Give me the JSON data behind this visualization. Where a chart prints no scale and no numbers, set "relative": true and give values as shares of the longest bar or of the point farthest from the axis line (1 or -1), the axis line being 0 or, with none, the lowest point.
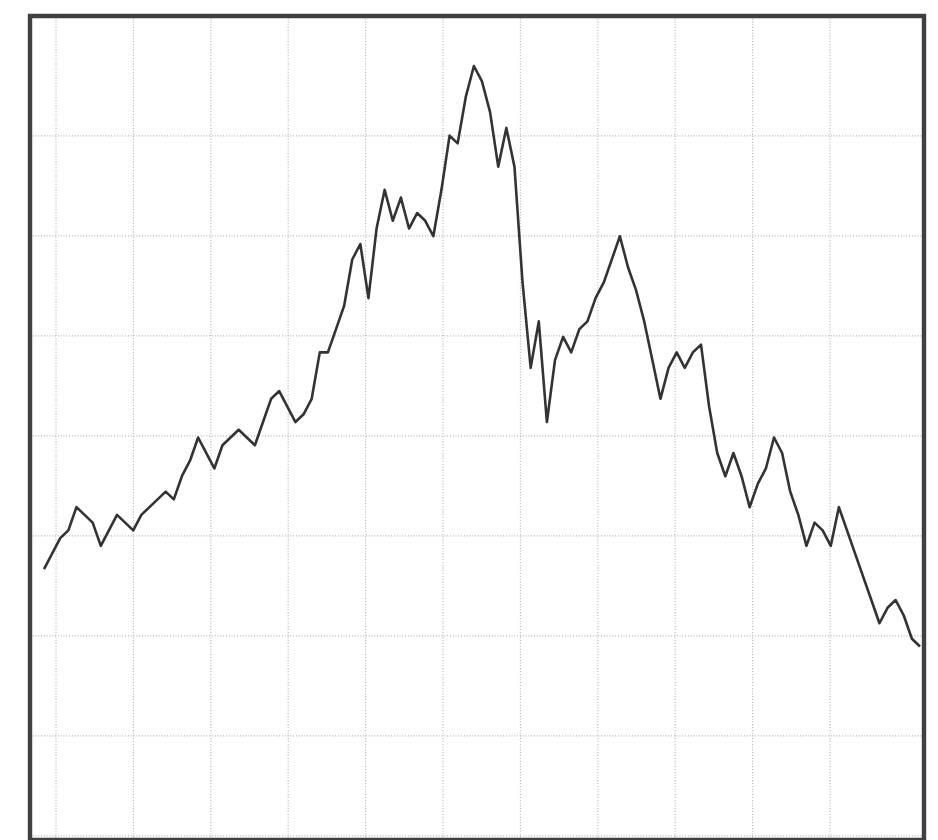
{
  "chart_data": {
    "type": "line",
    "relative": true,
    "grid": true,
    "color": "#333333",
    "categories": [
      null,
      null,
      null,
      null,
      null,
      null,
      null,
      null,
      null,
      null,
      null,
      null,
      null,
      null,
      null,
      null,
      null,
      null,
      null,
      null,
      null,
      null,
      null,
      null,
      null,
      null,
      null,
      null,
      null,
      null,
      null,
      null,
      null,
      null,
      null,
      null,
      null,
      null,
      null,
      null,
      null,
      null,
      null,
      null,
      null,
      null,
      null,
      null,
      null,
      null,
      null,
      null,
      null,
      null,
      null,
      null,
      null,
      null,
      null,
      null,
      null,
      null,
      null,
      null,
      null,
      null,
      null,
      null,
      null,
      null,
      null,
      null,
      null,
      null,
      null,
      null,
      null,
      null,
      null,
      null,
      null,
      null,
      null,
      null,
      null,
      null,
      null,
      null,
      null,
      null,
      null,
      null,
      null,
      null,
      null,
      null,
      null,
      null,
      null,
      null,
      null,
      null,
      null,
      null,
      null,
      null,
      null,
      null,
      null
    ],
    "values": [
      0.35,
      0.37,
      0.39,
      0.4,
      0.43,
      0.42,
      0.41,
      0.38,
      0.4,
      0.42,
      0.41,
      0.4,
      0.42,
      0.43,
      0.44,
      0.45,
      0.44,
      0.47,
      0.49,
      0.52,
      0.5,
      0.48,
      0.51,
      0.52,
      0.53,
      0.52,
      0.51,
      0.54,
      0.57,
      0.58,
      0.56,
      0.54,
      0.55,
      0.57,
      0.63,
      0.63,
      0.66,
      0.69,
      0.75,
      0.77,
      0.7,
      0.79,
      0.84,
      0.8,
      0.83,
      0.79,
      0.81,
      0.8,
      0.78,
      0.84,
      0.91,
      0.9,
      0.96,
      1,
      0.98,
      0.94,
      0.87,
      0.92,
      0.87,
      0.72,
      0.61,
      0.67,
      0.54,
      0.62,
      0.65,
      0.63,
      0.66,
      0.67,
      0.7,
      0.72,
      0.75,
      0.78,
      0.74,
      0.71,
      0.67,
      0.62,
      0.57,
      0.61,
      0.63,
      0.61,
      0.63,
      0.64,
      0.56,
      0.5,
      0.47,
      0.5,
      0.47,
      0.43,
      0.46,
      0.48,
      0.52,
      0.5,
      0.45,
      0.42,
      0.38,
      0.41,
      0.4,
      0.38,
      0.43,
      0.4,
      0.37,
      0.34,
      0.31,
      0.28,
      0.3,
      0.31,
      0.29,
      0.26,
      0.25
    ]
  }
}
